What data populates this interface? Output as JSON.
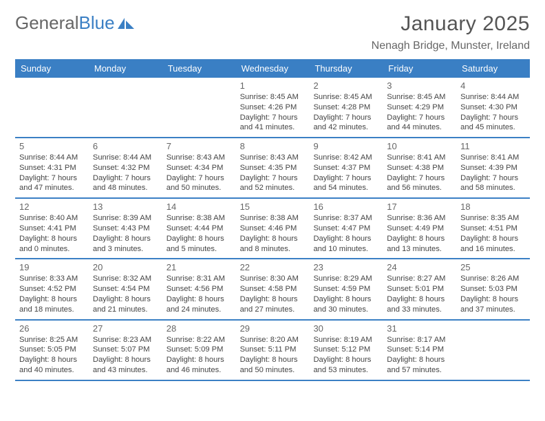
{
  "brand": {
    "first": "General",
    "second": "Blue"
  },
  "title": "January 2025",
  "location": "Nenagh Bridge, Munster, Ireland",
  "colors": {
    "accent": "#3a7fc4",
    "text": "#444444",
    "heading": "#555555",
    "background": "#ffffff"
  },
  "calendar": {
    "type": "table",
    "weekdays": [
      "Sunday",
      "Monday",
      "Tuesday",
      "Wednesday",
      "Thursday",
      "Friday",
      "Saturday"
    ],
    "label_prefix": {
      "sunrise": "Sunrise: ",
      "sunset": "Sunset: ",
      "daylight": "Daylight: "
    },
    "weeks": [
      [
        null,
        null,
        null,
        {
          "n": "1",
          "sunrise": "8:45 AM",
          "sunset": "4:26 PM",
          "daylight": "7 hours and 41 minutes."
        },
        {
          "n": "2",
          "sunrise": "8:45 AM",
          "sunset": "4:28 PM",
          "daylight": "7 hours and 42 minutes."
        },
        {
          "n": "3",
          "sunrise": "8:45 AM",
          "sunset": "4:29 PM",
          "daylight": "7 hours and 44 minutes."
        },
        {
          "n": "4",
          "sunrise": "8:44 AM",
          "sunset": "4:30 PM",
          "daylight": "7 hours and 45 minutes."
        }
      ],
      [
        {
          "n": "5",
          "sunrise": "8:44 AM",
          "sunset": "4:31 PM",
          "daylight": "7 hours and 47 minutes."
        },
        {
          "n": "6",
          "sunrise": "8:44 AM",
          "sunset": "4:32 PM",
          "daylight": "7 hours and 48 minutes."
        },
        {
          "n": "7",
          "sunrise": "8:43 AM",
          "sunset": "4:34 PM",
          "daylight": "7 hours and 50 minutes."
        },
        {
          "n": "8",
          "sunrise": "8:43 AM",
          "sunset": "4:35 PM",
          "daylight": "7 hours and 52 minutes."
        },
        {
          "n": "9",
          "sunrise": "8:42 AM",
          "sunset": "4:37 PM",
          "daylight": "7 hours and 54 minutes."
        },
        {
          "n": "10",
          "sunrise": "8:41 AM",
          "sunset": "4:38 PM",
          "daylight": "7 hours and 56 minutes."
        },
        {
          "n": "11",
          "sunrise": "8:41 AM",
          "sunset": "4:39 PM",
          "daylight": "7 hours and 58 minutes."
        }
      ],
      [
        {
          "n": "12",
          "sunrise": "8:40 AM",
          "sunset": "4:41 PM",
          "daylight": "8 hours and 0 minutes."
        },
        {
          "n": "13",
          "sunrise": "8:39 AM",
          "sunset": "4:43 PM",
          "daylight": "8 hours and 3 minutes."
        },
        {
          "n": "14",
          "sunrise": "8:38 AM",
          "sunset": "4:44 PM",
          "daylight": "8 hours and 5 minutes."
        },
        {
          "n": "15",
          "sunrise": "8:38 AM",
          "sunset": "4:46 PM",
          "daylight": "8 hours and 8 minutes."
        },
        {
          "n": "16",
          "sunrise": "8:37 AM",
          "sunset": "4:47 PM",
          "daylight": "8 hours and 10 minutes."
        },
        {
          "n": "17",
          "sunrise": "8:36 AM",
          "sunset": "4:49 PM",
          "daylight": "8 hours and 13 minutes."
        },
        {
          "n": "18",
          "sunrise": "8:35 AM",
          "sunset": "4:51 PM",
          "daylight": "8 hours and 16 minutes."
        }
      ],
      [
        {
          "n": "19",
          "sunrise": "8:33 AM",
          "sunset": "4:52 PM",
          "daylight": "8 hours and 18 minutes."
        },
        {
          "n": "20",
          "sunrise": "8:32 AM",
          "sunset": "4:54 PM",
          "daylight": "8 hours and 21 minutes."
        },
        {
          "n": "21",
          "sunrise": "8:31 AM",
          "sunset": "4:56 PM",
          "daylight": "8 hours and 24 minutes."
        },
        {
          "n": "22",
          "sunrise": "8:30 AM",
          "sunset": "4:58 PM",
          "daylight": "8 hours and 27 minutes."
        },
        {
          "n": "23",
          "sunrise": "8:29 AM",
          "sunset": "4:59 PM",
          "daylight": "8 hours and 30 minutes."
        },
        {
          "n": "24",
          "sunrise": "8:27 AM",
          "sunset": "5:01 PM",
          "daylight": "8 hours and 33 minutes."
        },
        {
          "n": "25",
          "sunrise": "8:26 AM",
          "sunset": "5:03 PM",
          "daylight": "8 hours and 37 minutes."
        }
      ],
      [
        {
          "n": "26",
          "sunrise": "8:25 AM",
          "sunset": "5:05 PM",
          "daylight": "8 hours and 40 minutes."
        },
        {
          "n": "27",
          "sunrise": "8:23 AM",
          "sunset": "5:07 PM",
          "daylight": "8 hours and 43 minutes."
        },
        {
          "n": "28",
          "sunrise": "8:22 AM",
          "sunset": "5:09 PM",
          "daylight": "8 hours and 46 minutes."
        },
        {
          "n": "29",
          "sunrise": "8:20 AM",
          "sunset": "5:11 PM",
          "daylight": "8 hours and 50 minutes."
        },
        {
          "n": "30",
          "sunrise": "8:19 AM",
          "sunset": "5:12 PM",
          "daylight": "8 hours and 53 minutes."
        },
        {
          "n": "31",
          "sunrise": "8:17 AM",
          "sunset": "5:14 PM",
          "daylight": "8 hours and 57 minutes."
        },
        null
      ]
    ]
  }
}
